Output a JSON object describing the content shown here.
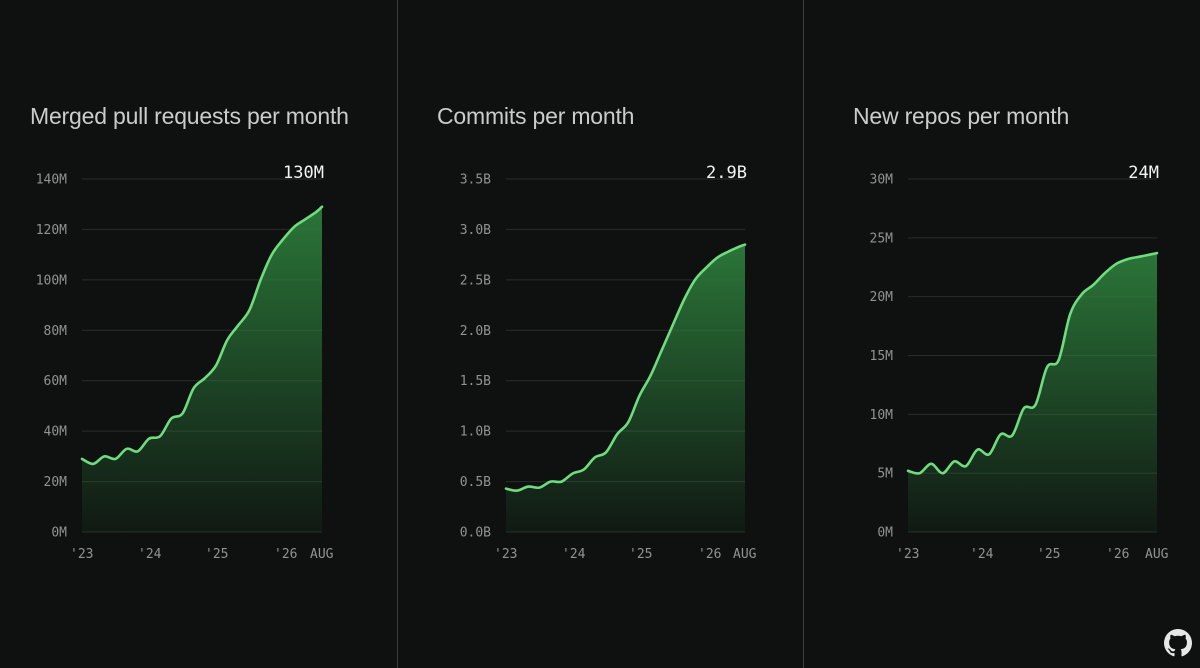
{
  "brand": {
    "icon": "github-octocat-icon"
  },
  "colors": {
    "background": "#0e1110",
    "line": "#6fdc7f",
    "area_top": "#2c7a3a",
    "grid": "#2a2d2c",
    "tick": "#8f9391"
  },
  "chart_data": [
    {
      "type": "area",
      "title": "Merged pull requests per month",
      "value_label": "130M",
      "y_ticks": [
        "0M",
        "20M",
        "40M",
        "60M",
        "80M",
        "100M",
        "120M",
        "140M"
      ],
      "ylim": [
        0,
        140
      ],
      "x_ticks": [
        "'23",
        "'24",
        "'25",
        "'26",
        "AUG"
      ],
      "x": [
        "2023-01",
        "2023-03",
        "2023-05",
        "2023-07",
        "2023-09",
        "2023-11",
        "2024-01",
        "2024-03",
        "2024-05",
        "2024-07",
        "2024-09",
        "2024-11",
        "2025-01",
        "2025-03",
        "2025-05",
        "2025-07",
        "2025-09",
        "2025-11",
        "2026-01",
        "2026-03",
        "2026-05",
        "2026-07",
        "2026-08"
      ],
      "values": [
        29,
        27,
        30,
        29,
        33,
        32,
        37,
        38,
        45,
        47,
        57,
        61,
        66,
        76,
        82,
        88,
        100,
        110,
        116,
        121,
        124,
        127,
        129
      ]
    },
    {
      "type": "area",
      "title": "Commits per month",
      "value_label": "2.9B",
      "y_ticks": [
        "0.0B",
        "0.5B",
        "1.0B",
        "1.5B",
        "2.0B",
        "2.5B",
        "3.0B",
        "3.5B"
      ],
      "ylim": [
        0,
        3.5
      ],
      "x_ticks": [
        "'23",
        "'24",
        "'25",
        "'26",
        "AUG"
      ],
      "x": [
        "2023-01",
        "2023-03",
        "2023-05",
        "2023-07",
        "2023-09",
        "2023-11",
        "2024-01",
        "2024-03",
        "2024-05",
        "2024-07",
        "2024-09",
        "2024-11",
        "2025-01",
        "2025-03",
        "2025-05",
        "2025-07",
        "2025-09",
        "2025-11",
        "2026-01",
        "2026-03",
        "2026-05",
        "2026-07",
        "2026-08"
      ],
      "values": [
        0.43,
        0.41,
        0.45,
        0.44,
        0.5,
        0.5,
        0.58,
        0.62,
        0.74,
        0.79,
        0.97,
        1.09,
        1.35,
        1.55,
        1.8,
        2.05,
        2.3,
        2.5,
        2.62,
        2.72,
        2.78,
        2.83,
        2.85
      ]
    },
    {
      "type": "area",
      "title": "New repos per month",
      "value_label": "24M",
      "y_ticks": [
        "0M",
        "5M",
        "10M",
        "15M",
        "20M",
        "25M",
        "30M"
      ],
      "ylim": [
        0,
        30
      ],
      "x_ticks": [
        "'23",
        "'24",
        "'25",
        "'26",
        "AUG"
      ],
      "x": [
        "2023-01",
        "2023-03",
        "2023-05",
        "2023-07",
        "2023-09",
        "2023-11",
        "2024-01",
        "2024-03",
        "2024-05",
        "2024-07",
        "2024-09",
        "2024-11",
        "2025-01",
        "2025-03",
        "2025-05",
        "2025-07",
        "2025-09",
        "2025-11",
        "2026-01",
        "2026-03",
        "2026-05",
        "2026-07",
        "2026-08"
      ],
      "values": [
        5.2,
        5.0,
        5.8,
        5.0,
        6.0,
        5.6,
        7.0,
        6.6,
        8.3,
        8.2,
        10.5,
        10.8,
        14.0,
        14.6,
        18.5,
        20.2,
        21.0,
        22.0,
        22.8,
        23.2,
        23.4,
        23.6,
        23.7
      ]
    }
  ]
}
